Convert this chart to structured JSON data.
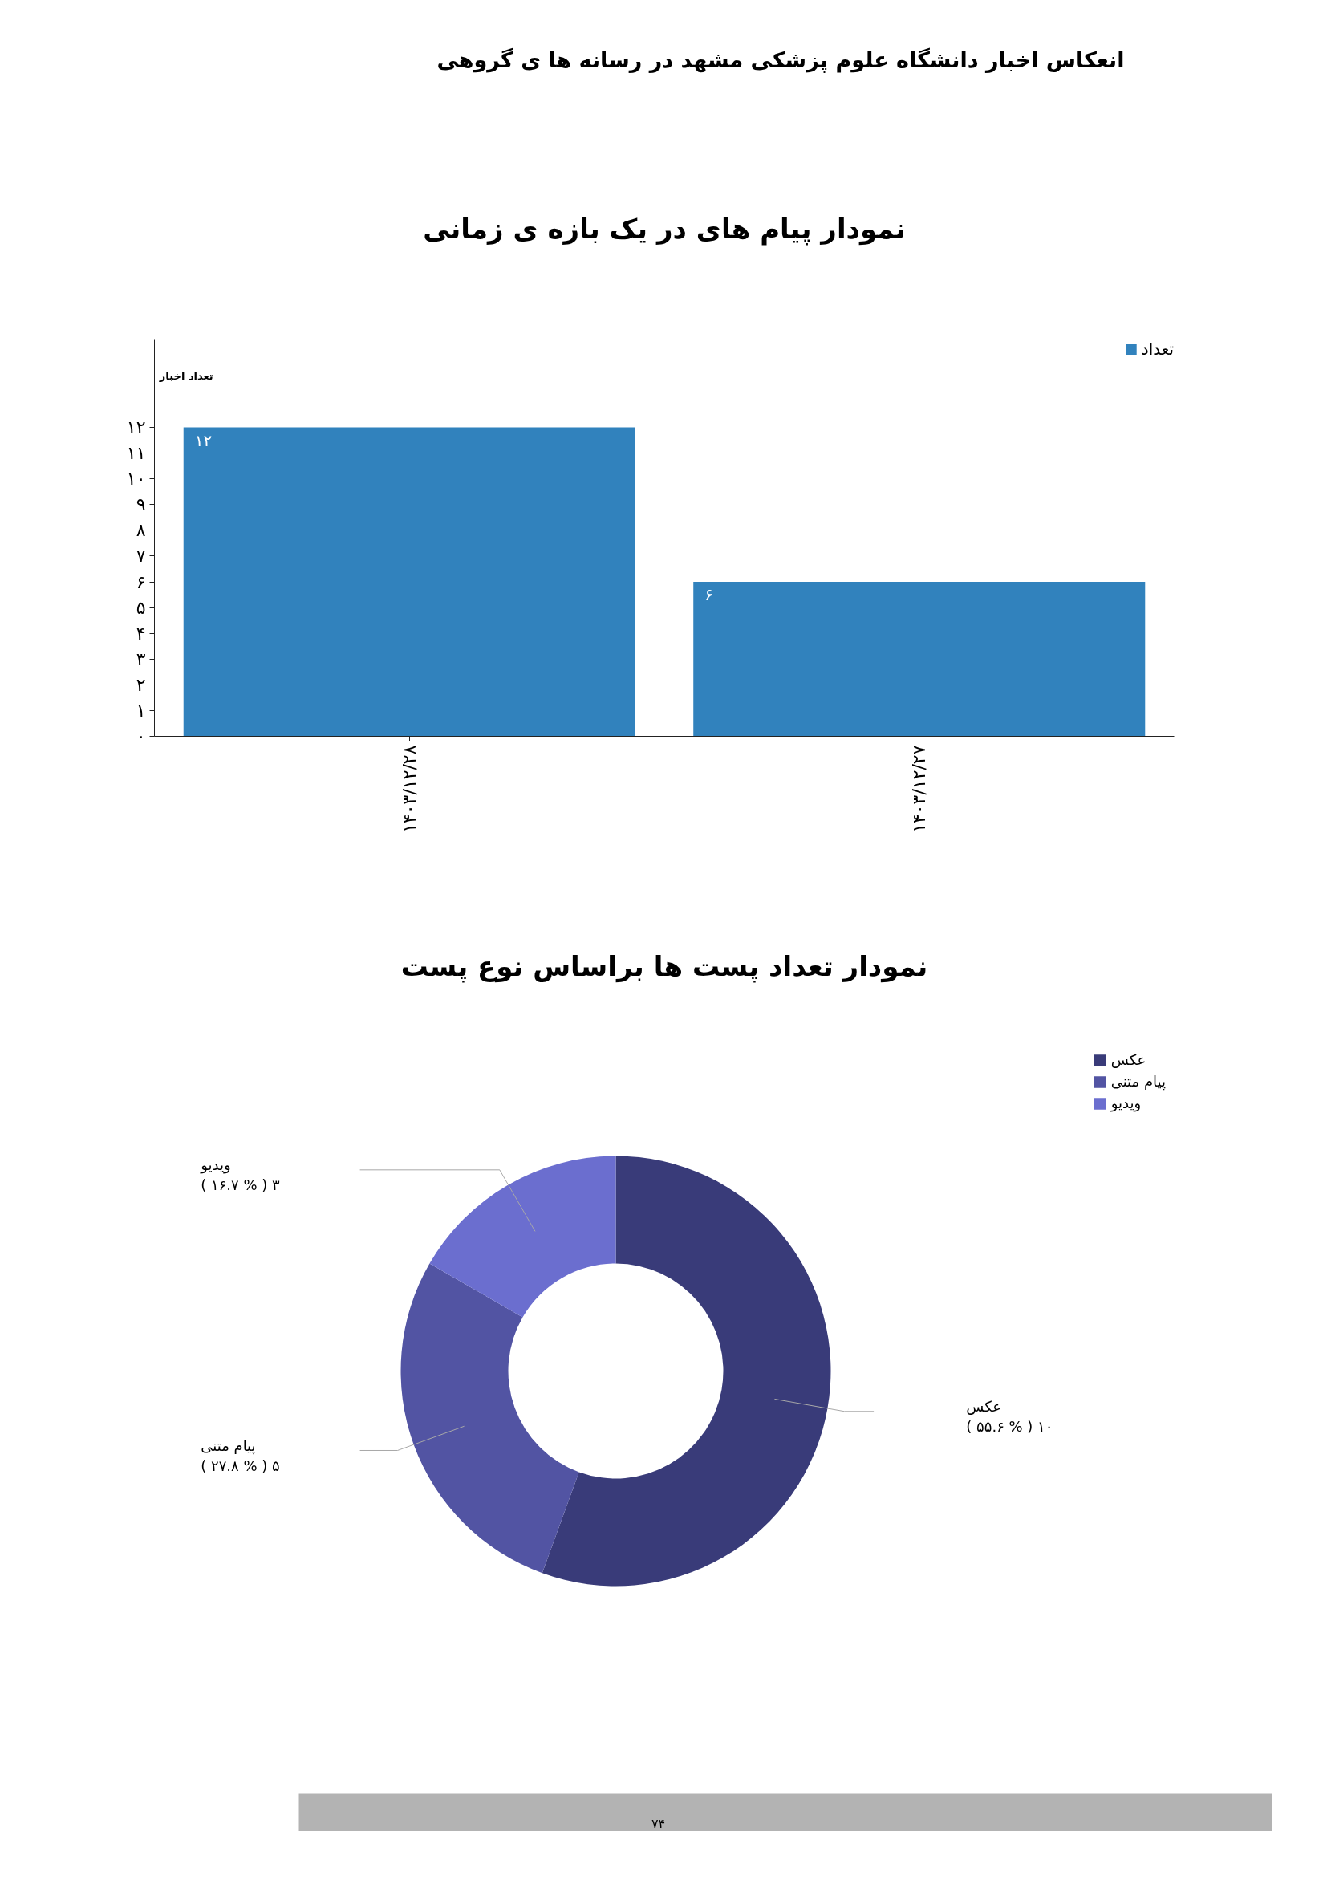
{
  "chart_data": [
    {
      "type": "bar",
      "title": "نمودار پیام های در یک بازه ی زمانی",
      "annotations": [
        "انعکاس اخبار دانشگاه علوم پزشکی مشهد در رسانه ها ی گروهی"
      ],
      "ylabel": "تعداد اخبار",
      "categories": [
        "۱۴۰۳/۱۲/۲۸",
        "۱۴۰۳/۱۲/۲۷"
      ],
      "series": [
        {
          "name": "تعداد",
          "color": "#3182bd",
          "values": [
            12,
            6
          ],
          "value_labels": [
            "۱۲",
            "۶"
          ]
        }
      ],
      "ylim": [
        0,
        15.4
      ],
      "yticks": [
        {
          "value": 0,
          "label": "۰"
        },
        {
          "value": 1,
          "label": "۱"
        },
        {
          "value": 2,
          "label": "۲"
        },
        {
          "value": 3,
          "label": "۳"
        },
        {
          "value": 4,
          "label": "۴"
        },
        {
          "value": 5,
          "label": "۵"
        },
        {
          "value": 6,
          "label": "۶"
        },
        {
          "value": 7,
          "label": "۷"
        },
        {
          "value": 8,
          "label": "۸"
        },
        {
          "value": 9,
          "label": "۹"
        },
        {
          "value": 10,
          "label": "۱۰"
        },
        {
          "value": 11,
          "label": "۱۱"
        },
        {
          "value": 12,
          "label": "۱۲"
        }
      ],
      "grid": false,
      "legend": "top right"
    },
    {
      "type": "donut",
      "title": "نمودار تعداد پست ها براساس نوع پست",
      "annotations": [
        "۷۴"
      ],
      "categories": [
        "عکس",
        "پیام متنی",
        "ویدیو"
      ],
      "values": [
        10,
        5,
        3
      ],
      "colors": [
        "#393b79",
        "#5254a3",
        "#6b6ecf"
      ],
      "value_labels": [
        "( ۵۵.۶ % ) ۱۰",
        "( ۲۷.۸ % ) ۵",
        "( ۱۶.۷ % ) ۳"
      ],
      "legend": "top right"
    }
  ]
}
